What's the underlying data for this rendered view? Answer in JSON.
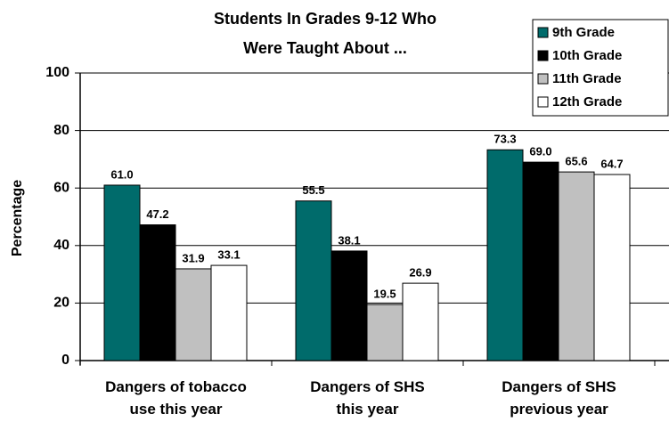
{
  "chart_data": {
    "type": "bar",
    "title": "Students In Grades 9-12 Who\nWere Taught About ...",
    "ylabel": "Percentage",
    "categories": [
      "Dangers of tobacco\nuse this year",
      "Dangers of SHS\nthis year",
      "Dangers of SHS\nprevious year"
    ],
    "series": [
      {
        "name": "9th Grade",
        "color": "#006b6b",
        "values": [
          61.0,
          55.5,
          73.3
        ],
        "value_labels": [
          "61.0",
          "55.5",
          "73.3"
        ]
      },
      {
        "name": "10th Grade",
        "color": "#000000",
        "values": [
          47.2,
          38.1,
          69.0
        ],
        "value_labels": [
          "47.2",
          "38.1",
          "69.0"
        ]
      },
      {
        "name": "11th Grade",
        "color": "#c0c0c0",
        "values": [
          31.9,
          19.5,
          65.6
        ],
        "value_labels": [
          "31.9",
          "19.5",
          "65.6"
        ]
      },
      {
        "name": "12th Grade",
        "color": "#ffffff",
        "values": [
          33.1,
          26.9,
          64.7
        ],
        "value_labels": [
          "33.1",
          "26.9",
          "64.7"
        ]
      }
    ],
    "ylim": [
      0,
      100
    ],
    "yticks": [
      0,
      20,
      40,
      60,
      80,
      100
    ],
    "grid": true,
    "legend": "upper right"
  }
}
